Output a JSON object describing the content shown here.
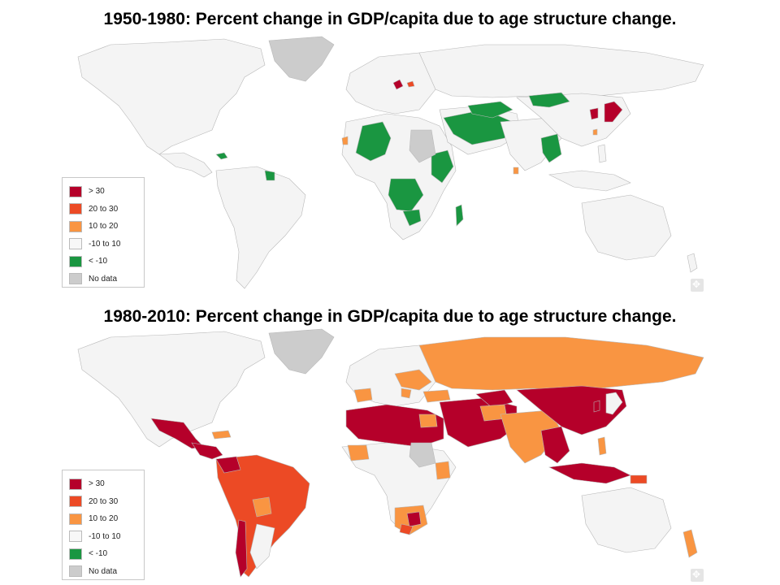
{
  "panels": [
    {
      "title": "1950-1980:  Percent change in GDP/capita due to age structure change.",
      "legend": [
        {
          "label": "> 30",
          "color": "#b5002a"
        },
        {
          "label": "20 to 30",
          "color": "#ec4a25"
        },
        {
          "label": "10 to 20",
          "color": "#f99542"
        },
        {
          "label": "-10 to 10",
          "color": "#f7f7f7"
        },
        {
          "label": "< -10",
          "color": "#1a9641"
        },
        {
          "label": "No data",
          "color": "#cccccc"
        }
      ]
    },
    {
      "title": "1980-2010:  Percent change in GDP/capita due to age structure change.",
      "legend": [
        {
          "label": "> 30",
          "color": "#b5002a"
        },
        {
          "label": "20 to 30",
          "color": "#ec4a25"
        },
        {
          "label": "10 to 20",
          "color": "#f99542"
        },
        {
          "label": "-10 to 10",
          "color": "#f7f7f7"
        },
        {
          "label": "< -10",
          "color": "#1a9641"
        },
        {
          "label": "No data",
          "color": "#cccccc"
        }
      ]
    }
  ],
  "colors": {
    "ocean": "#ffffff",
    "land_default": "#f4f4f4",
    "border": "#b8b8b8",
    "gt30": "#b5002a",
    "c20_30": "#ec4a25",
    "c10_20": "#f99542",
    "neutral": "#f4f4f4",
    "lt_m10": "#1a9641",
    "nodata": "#cccccc"
  }
}
